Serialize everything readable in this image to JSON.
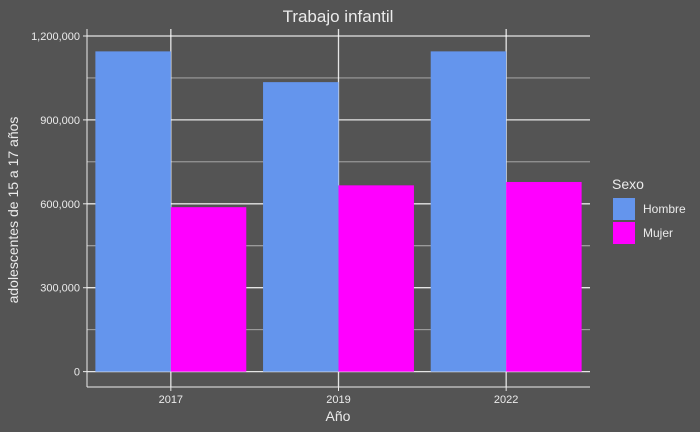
{
  "chart_data": {
    "type": "bar",
    "title": "Trabajo infantil",
    "xlabel": "Año",
    "ylabel": "adolescentes de 15 a 17 años",
    "categories": [
      "2017",
      "2019",
      "2022"
    ],
    "series": [
      {
        "name": "Hombre",
        "values": [
          1145000,
          1035000,
          1145000
        ],
        "color": "#6495ED"
      },
      {
        "name": "Mujer",
        "values": [
          588000,
          666000,
          678000
        ],
        "color": "#FF00FF"
      }
    ],
    "ylim": [
      -55000,
      1225000
    ],
    "yticks": [
      0,
      300000,
      600000,
      900000,
      1200000
    ],
    "ytick_labels": [
      "0",
      "300,000",
      "600,000",
      "900,000",
      "1,200,000"
    ],
    "grid": true,
    "legend": {
      "title": "Sexo",
      "position": "right"
    },
    "colors": {
      "background": "#545454",
      "grid": "#FFFFFF",
      "text": "#EBEBEB"
    }
  }
}
